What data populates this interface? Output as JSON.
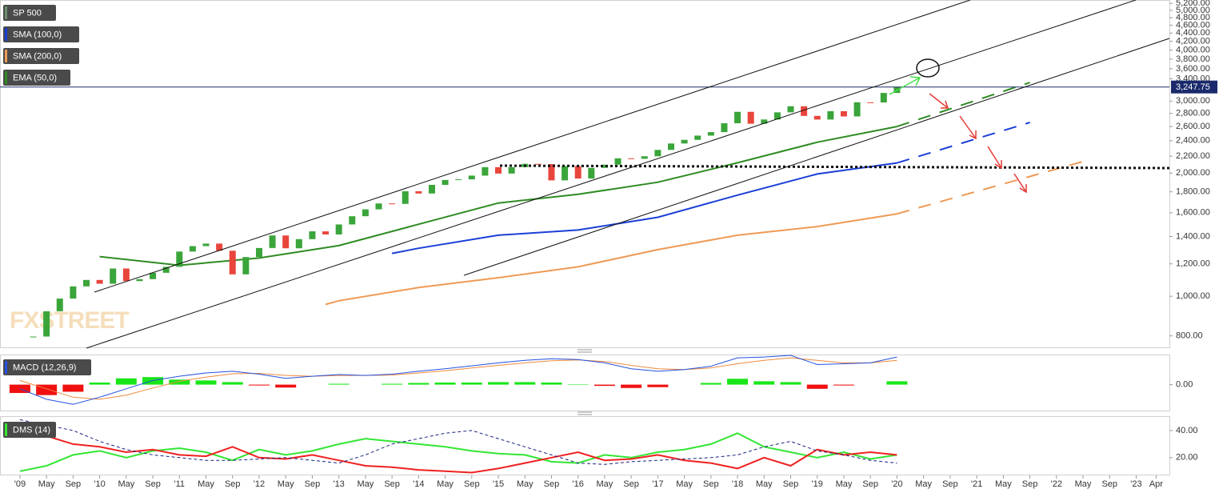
{
  "chart_data": [
    {
      "type": "candlestick",
      "watermark": "FXSTREET",
      "log": true,
      "xlim": [
        "2008-10",
        "2023-06"
      ],
      "ylim": [
        750,
        5300
      ],
      "yticks": [
        {
          "value": 800,
          "label": "800.00"
        },
        {
          "value": 1000,
          "label": "1,000.00"
        },
        {
          "value": 1200,
          "label": "1,200.00"
        },
        {
          "value": 1400,
          "label": "1,400.00"
        },
        {
          "value": 1600,
          "label": "1,600.00"
        },
        {
          "value": 1800,
          "label": "1,800.00"
        },
        {
          "value": 2000,
          "label": "2,000.00"
        },
        {
          "value": 2200,
          "label": "2,200.00"
        },
        {
          "value": 2400,
          "label": "2,400.00"
        },
        {
          "value": 2600,
          "label": "2,600.00"
        },
        {
          "value": 2800,
          "label": "2,800.00"
        },
        {
          "value": 3000,
          "label": "3,000.00"
        },
        {
          "value": 3400,
          "label": "3,400.00"
        },
        {
          "value": 3600,
          "label": "3,600.00"
        },
        {
          "value": 3800,
          "label": "3,800.00"
        },
        {
          "value": 4000,
          "label": "4,000.00"
        },
        {
          "value": 4200,
          "label": "4,200.00"
        },
        {
          "value": 4400,
          "label": "4,400.00"
        },
        {
          "value": 4600,
          "label": "4,600.00"
        },
        {
          "value": 4800,
          "label": "4,800.00"
        },
        {
          "value": 5000,
          "label": "5,000.00"
        },
        {
          "value": 5200,
          "label": "5,200.00"
        }
      ],
      "last_price": {
        "value": 3247.75,
        "label": "3,247.75"
      },
      "up_color": "#3aa53a",
      "down_color": "#e8453c",
      "series": [
        {
          "name": "SP 500",
          "color": "#6d8f6d",
          "x": [
            "2009-03",
            "2009-05",
            "2009-07",
            "2009-09",
            "2009-11",
            "2010-01",
            "2010-03",
            "2010-05",
            "2010-07",
            "2010-09",
            "2010-11",
            "2011-01",
            "2011-03",
            "2011-05",
            "2011-07",
            "2011-09",
            "2011-11",
            "2012-01",
            "2012-03",
            "2012-05",
            "2012-07",
            "2012-09",
            "2012-11",
            "2013-01",
            "2013-03",
            "2013-05",
            "2013-07",
            "2013-09",
            "2013-11",
            "2014-01",
            "2014-03",
            "2014-05",
            "2014-07",
            "2014-09",
            "2014-11",
            "2015-01",
            "2015-03",
            "2015-05",
            "2015-07",
            "2015-09",
            "2015-11",
            "2016-01",
            "2016-03",
            "2016-05",
            "2016-07",
            "2016-09",
            "2016-11",
            "2017-01",
            "2017-03",
            "2017-05",
            "2017-07",
            "2017-09",
            "2017-11",
            "2018-01",
            "2018-03",
            "2018-05",
            "2018-07",
            "2018-09",
            "2018-11",
            "2019-01",
            "2019-03",
            "2019-05",
            "2019-07",
            "2019-09",
            "2019-11",
            "2020-01"
          ],
          "values": [
            797,
            919,
            987,
            1057,
            1096,
            1073,
            1169,
            1089,
            1101,
            1141,
            1180,
            1286,
            1326,
            1345,
            1292,
            1131,
            1247,
            1312,
            1408,
            1310,
            1379,
            1441,
            1416,
            1498,
            1569,
            1631,
            1686,
            1682,
            1806,
            1783,
            1872,
            1924,
            1931,
            1972,
            2068,
            1995,
            2068,
            2107,
            2104,
            1920,
            2080,
            1940,
            2060,
            2097,
            2174,
            2168,
            2199,
            2279,
            2363,
            2412,
            2470,
            2519,
            2648,
            2824,
            2641,
            2705,
            2816,
            2914,
            2760,
            2704,
            2834,
            2752,
            2980,
            2977,
            3141,
            3247.75
          ]
        },
        {
          "name": "SMA (100,0)",
          "color": "#1a3fd6",
          "x": [
            "2013-09",
            "2014-01",
            "2015-01",
            "2016-01",
            "2017-01",
            "2018-01",
            "2019-01",
            "2020-01"
          ],
          "values": [
            1273,
            1310,
            1410,
            1452,
            1560,
            1767,
            1990,
            2118
          ],
          "projection_x": [
            "2020-01",
            "2021-09"
          ],
          "projection_values": [
            2118,
            2660
          ]
        },
        {
          "name": "SMA (200,0)",
          "color": "#ee9a55",
          "x": [
            "2012-11",
            "2013-01",
            "2014-01",
            "2015-01",
            "2016-01",
            "2017-01",
            "2018-01",
            "2019-01",
            "2020-01"
          ],
          "values": [
            955,
            975,
            1050,
            1110,
            1180,
            1300,
            1410,
            1480,
            1590
          ],
          "projection_x": [
            "2020-01",
            "2022-05"
          ],
          "projection_values": [
            1590,
            2135
          ]
        },
        {
          "name": "EMA (50,0)",
          "color": "#2e8b22",
          "x": [
            "2010-01",
            "2011-01",
            "2012-01",
            "2013-01",
            "2014-01",
            "2015-01",
            "2016-01",
            "2017-01",
            "2018-01",
            "2019-01",
            "2020-01"
          ],
          "values": [
            1250,
            1190,
            1240,
            1330,
            1500,
            1690,
            1775,
            1900,
            2120,
            2380,
            2600
          ],
          "projection_x": [
            "2020-01",
            "2021-09"
          ],
          "projection_values": [
            2600,
            3330
          ]
        }
      ]
    },
    {
      "type": "macd",
      "title": "MACD (12,26,9)",
      "xlim": [
        "2008-10",
        "2023-06"
      ],
      "ylim": [
        -62,
        70
      ],
      "yticks": [
        {
          "value": 0,
          "label": "0.00"
        }
      ],
      "x": [
        "2009-01",
        "2009-05",
        "2009-09",
        "2010-01",
        "2010-05",
        "2010-09",
        "2011-01",
        "2011-05",
        "2011-09",
        "2012-01",
        "2012-05",
        "2012-09",
        "2013-01",
        "2013-05",
        "2013-09",
        "2014-01",
        "2014-05",
        "2014-09",
        "2015-01",
        "2015-05",
        "2015-09",
        "2016-01",
        "2016-05",
        "2016-09",
        "2017-01",
        "2017-05",
        "2017-09",
        "2018-01",
        "2018-05",
        "2018-09",
        "2019-01",
        "2019-05",
        "2019-09",
        "2020-01"
      ],
      "macd": {
        "color": "#2451e0",
        "values": [
          -10,
          -35,
          -47,
          -30,
          -10,
          10,
          20,
          28,
          32,
          25,
          15,
          20,
          24,
          22,
          25,
          32,
          38,
          45,
          52,
          58,
          62,
          60,
          52,
          38,
          32,
          36,
          44,
          64,
          66,
          70,
          48,
          50,
          52,
          66
        ]
      },
      "signal": {
        "color": "#ef8a3c",
        "values": [
          10,
          -10,
          -30,
          -35,
          -25,
          -8,
          8,
          18,
          26,
          27,
          22,
          20,
          22,
          22,
          23,
          28,
          33,
          40,
          46,
          52,
          57,
          59,
          55,
          46,
          38,
          36,
          40,
          50,
          58,
          64,
          58,
          52,
          52,
          58
        ]
      },
      "histogram": {
        "up_color": "#19e619",
        "down_color": "#f01010",
        "values": [
          -20,
          -25,
          -17,
          5,
          15,
          18,
          12,
          10,
          6,
          -2,
          -7,
          0,
          2,
          0,
          2,
          4,
          5,
          5,
          6,
          6,
          5,
          1,
          -3,
          -8,
          -6,
          0,
          4,
          14,
          8,
          6,
          -10,
          -2,
          0,
          8
        ]
      }
    },
    {
      "type": "line",
      "title": "DMS (14)",
      "xlim": [
        "2008-10",
        "2023-06"
      ],
      "ylim": [
        7.5,
        50
      ],
      "yticks": [
        {
          "value": 20,
          "label": "20.00"
        },
        {
          "value": 40,
          "label": "40.00"
        }
      ],
      "x": [
        "2009-01",
        "2009-05",
        "2009-09",
        "2010-01",
        "2010-05",
        "2010-09",
        "2011-01",
        "2011-05",
        "2011-09",
        "2012-01",
        "2012-05",
        "2012-09",
        "2013-01",
        "2013-05",
        "2013-09",
        "2014-01",
        "2014-05",
        "2014-09",
        "2015-01",
        "2015-05",
        "2015-09",
        "2016-01",
        "2016-05",
        "2016-09",
        "2017-01",
        "2017-05",
        "2017-09",
        "2018-01",
        "2018-05",
        "2018-09",
        "2019-01",
        "2019-05",
        "2019-09",
        "2020-01"
      ],
      "series": [
        {
          "color": "#33e633",
          "values": [
            10,
            14,
            22,
            25,
            20,
            25,
            27,
            24,
            18,
            26,
            22,
            25,
            30,
            34,
            32,
            30,
            28,
            25,
            23,
            22,
            17,
            16,
            22,
            20,
            24,
            26,
            30,
            38,
            28,
            24,
            20,
            24,
            19,
            22
          ]
        },
        {
          "color": "#f02020",
          "values": [
            45,
            36,
            30,
            28,
            24,
            26,
            22,
            21,
            28,
            20,
            19,
            22,
            18,
            14,
            13,
            11,
            10,
            9,
            12,
            16,
            20,
            24,
            18,
            19,
            22,
            18,
            16,
            12,
            20,
            14,
            26,
            22,
            24,
            22
          ]
        },
        {
          "color": "#1a237e",
          "dash": true,
          "values": [
            48,
            44,
            40,
            32,
            26,
            22,
            20,
            18,
            18,
            19,
            20,
            18,
            16,
            22,
            30,
            34,
            38,
            40,
            34,
            28,
            22,
            16,
            15,
            17,
            18,
            19,
            20,
            22,
            28,
            32,
            25,
            22,
            18,
            16
          ]
        }
      ],
      "xticks": [
        {
          "value": "2009-01",
          "label": "'09"
        },
        {
          "value": "2009-05",
          "label": "May"
        },
        {
          "value": "2009-09",
          "label": "Sep"
        },
        {
          "value": "2010-01",
          "label": "'10"
        },
        {
          "value": "2010-05",
          "label": "May"
        },
        {
          "value": "2010-09",
          "label": "Sep"
        },
        {
          "value": "2011-01",
          "label": "'11"
        },
        {
          "value": "2011-05",
          "label": "May"
        },
        {
          "value": "2011-09",
          "label": "Sep"
        },
        {
          "value": "2012-01",
          "label": "'12"
        },
        {
          "value": "2012-05",
          "label": "May"
        },
        {
          "value": "2012-09",
          "label": "Sep"
        },
        {
          "value": "2013-01",
          "label": "'13"
        },
        {
          "value": "2013-05",
          "label": "May"
        },
        {
          "value": "2013-09",
          "label": "Sep"
        },
        {
          "value": "2014-01",
          "label": "'14"
        },
        {
          "value": "2014-05",
          "label": "May"
        },
        {
          "value": "2014-09",
          "label": "Sep"
        },
        {
          "value": "2015-01",
          "label": "'15"
        },
        {
          "value": "2015-05",
          "label": "May"
        },
        {
          "value": "2015-09",
          "label": "Sep"
        },
        {
          "value": "2016-01",
          "label": "'16"
        },
        {
          "value": "2016-05",
          "label": "May"
        },
        {
          "value": "2016-09",
          "label": "Sep"
        },
        {
          "value": "2017-01",
          "label": "'17"
        },
        {
          "value": "2017-05",
          "label": "May"
        },
        {
          "value": "2017-09",
          "label": "Sep"
        },
        {
          "value": "2018-01",
          "label": "'18"
        },
        {
          "value": "2018-05",
          "label": "May"
        },
        {
          "value": "2018-09",
          "label": "Sep"
        },
        {
          "value": "2019-01",
          "label": "'19"
        },
        {
          "value": "2019-05",
          "label": "May"
        },
        {
          "value": "2019-09",
          "label": "Sep"
        },
        {
          "value": "2020-01",
          "label": "'20"
        },
        {
          "value": "2020-05",
          "label": "May"
        },
        {
          "value": "2020-09",
          "label": "Sep"
        },
        {
          "value": "2021-01",
          "label": "'21"
        },
        {
          "value": "2021-05",
          "label": "May"
        },
        {
          "value": "2021-09",
          "label": "Sep"
        },
        {
          "value": "2022-01",
          "label": "'22"
        },
        {
          "value": "2022-05",
          "label": "May"
        },
        {
          "value": "2022-09",
          "label": "Sep"
        },
        {
          "value": "2023-01",
          "label": "'23"
        },
        {
          "value": "2023-04",
          "label": "Apr"
        }
      ]
    }
  ]
}
